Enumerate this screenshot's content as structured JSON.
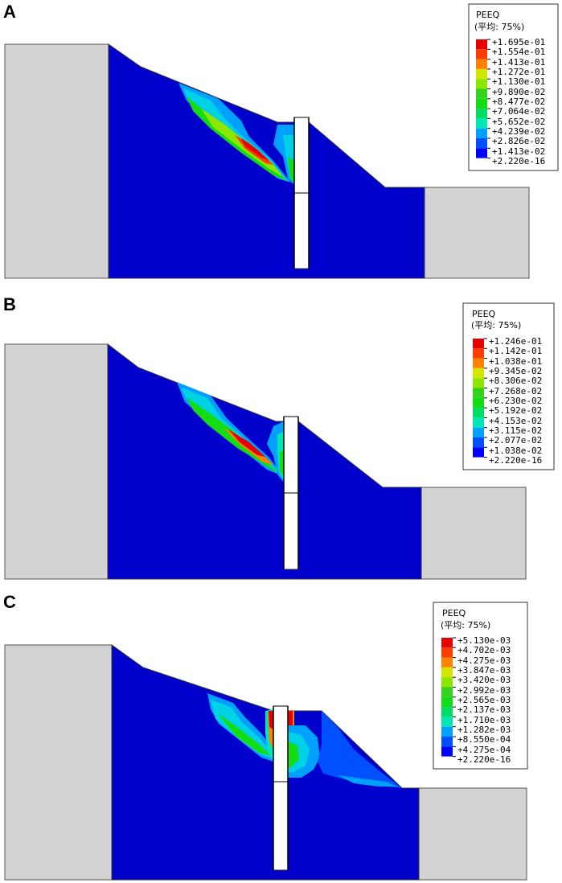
{
  "colors": {
    "soil_blue": "#0000CD",
    "rock_gray": "#D3D3D3",
    "scale": [
      "#0000FF",
      "#0050FF",
      "#00A0FF",
      "#00D2E6",
      "#00E6B4",
      "#00DC64",
      "#14DC14",
      "#32D21E",
      "#8CE600",
      "#D2E600",
      "#FFC800",
      "#FF8200",
      "#FF3C00",
      "#E60000"
    ]
  },
  "panels": [
    {
      "label": "A",
      "legend": {
        "title": "PEEQ",
        "subtitle": "(平均: 75%)",
        "values": [
          "+1.695e-01",
          "+1.554e-01",
          "+1.413e-01",
          "+1.272e-01",
          "+1.130e-01",
          "+9.890e-02",
          "+8.477e-02",
          "+7.064e-02",
          "+5.652e-02",
          "+4.239e-02",
          "+2.826e-02",
          "+1.413e-02",
          "+2.220e-16"
        ]
      }
    },
    {
      "label": "B",
      "legend": {
        "title": "PEEQ",
        "subtitle": "(平均: 75%)",
        "values": [
          "+1.246e-01",
          "+1.142e-01",
          "+1.038e-01",
          "+9.345e-02",
          "+8.306e-02",
          "+7.268e-02",
          "+6.230e-02",
          "+5.192e-02",
          "+4.153e-02",
          "+3.115e-02",
          "+2.077e-02",
          "+1.038e-02",
          "+2.220e-16"
        ]
      }
    },
    {
      "label": "C",
      "legend": {
        "title": "PEEQ",
        "subtitle": "(平均: 75%)",
        "values": [
          "+5.130e-03",
          "+4.702e-03",
          "+4.275e-03",
          "+3.847e-03",
          "+3.420e-03",
          "+2.992e-03",
          "+2.565e-03",
          "+2.137e-03",
          "+1.710e-03",
          "+1.282e-03",
          "+8.550e-04",
          "+4.275e-04",
          "+2.220e-16"
        ]
      }
    }
  ]
}
